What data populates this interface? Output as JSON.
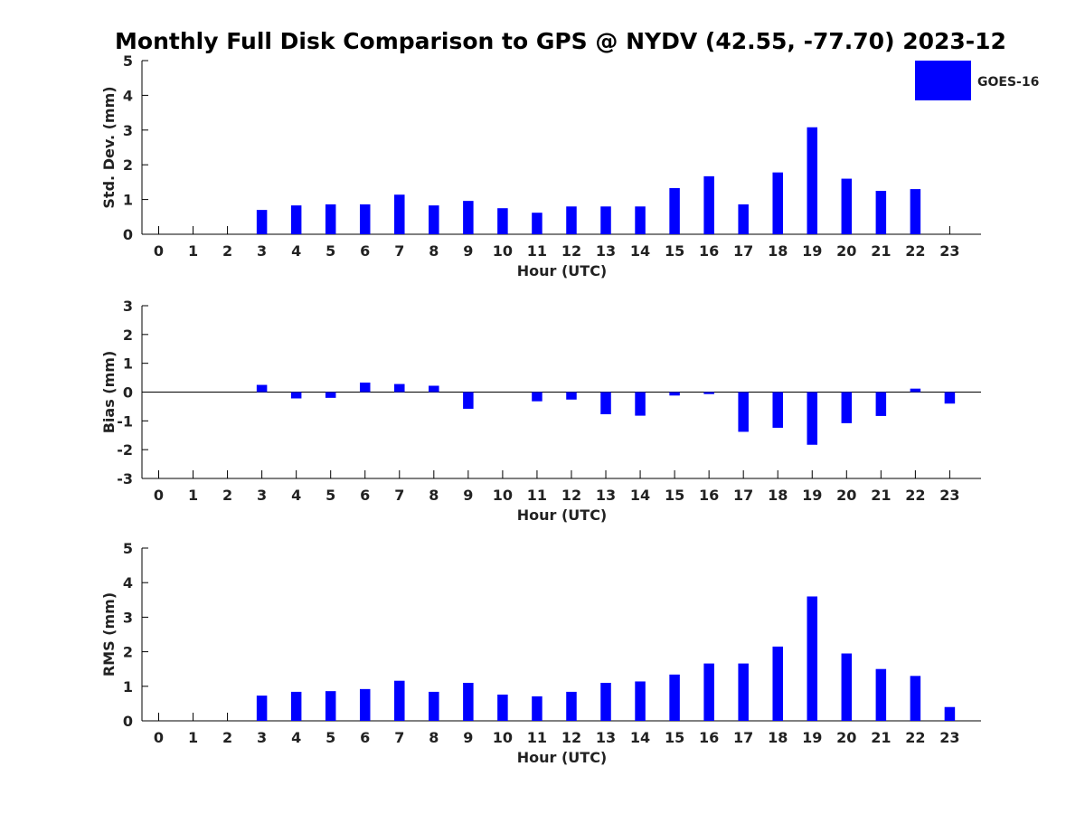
{
  "chart_data": {
    "title": "Monthly Full Disk Comparison to GPS @ NYDV (42.55, -77.70) 2023-12",
    "legend": {
      "label": "GOES-16",
      "color": "#0000ff",
      "placement": "top-right"
    },
    "bar_color": "#0000ff",
    "panels": [
      {
        "type": "bar",
        "name": "std-dev",
        "ylabel": "Std. Dev. (mm)",
        "xlabel": "Hour (UTC)",
        "ylim": [
          0,
          5
        ],
        "yticks": [
          "0",
          "1",
          "2",
          "3",
          "4",
          "5"
        ],
        "categories": [
          "0",
          "1",
          "2",
          "3",
          "4",
          "5",
          "6",
          "7",
          "8",
          "9",
          "10",
          "11",
          "12",
          "13",
          "14",
          "15",
          "16",
          "17",
          "18",
          "19",
          "20",
          "21",
          "22",
          "23"
        ],
        "series": [
          {
            "name": "GOES-16",
            "values": [
              null,
              null,
              null,
              0.7,
              0.83,
              0.86,
              0.86,
              1.14,
              0.83,
              0.96,
              0.75,
              0.62,
              0.8,
              0.8,
              0.8,
              1.33,
              1.67,
              0.86,
              1.78,
              3.08,
              1.6,
              1.25,
              1.3,
              null
            ]
          }
        ]
      },
      {
        "type": "bar",
        "name": "bias",
        "ylabel": "Bias (mm)",
        "xlabel": "Hour (UTC)",
        "ylim": [
          -3,
          3
        ],
        "yticks": [
          "-3",
          "-2",
          "-1",
          "0",
          "1",
          "2",
          "3"
        ],
        "categories": [
          "0",
          "1",
          "2",
          "3",
          "4",
          "5",
          "6",
          "7",
          "8",
          "9",
          "10",
          "11",
          "12",
          "13",
          "14",
          "15",
          "16",
          "17",
          "18",
          "19",
          "20",
          "21",
          "22",
          "23"
        ],
        "series": [
          {
            "name": "GOES-16",
            "values": [
              null,
              null,
              null,
              0.25,
              -0.22,
              -0.2,
              0.33,
              0.28,
              0.22,
              -0.58,
              null,
              -0.32,
              -0.26,
              -0.77,
              -0.82,
              -0.12,
              -0.07,
              -1.38,
              -1.24,
              -1.83,
              -1.08,
              -0.83,
              0.12,
              -0.4
            ]
          }
        ],
        "zero_line": true
      },
      {
        "type": "bar",
        "name": "rms",
        "ylabel": "RMS (mm)",
        "xlabel": "Hour (UTC)",
        "ylim": [
          0,
          5
        ],
        "yticks": [
          "0",
          "1",
          "2",
          "3",
          "4",
          "5"
        ],
        "categories": [
          "0",
          "1",
          "2",
          "3",
          "4",
          "5",
          "6",
          "7",
          "8",
          "9",
          "10",
          "11",
          "12",
          "13",
          "14",
          "15",
          "16",
          "17",
          "18",
          "19",
          "20",
          "21",
          "22",
          "23"
        ],
        "series": [
          {
            "name": "GOES-16",
            "values": [
              null,
              null,
              null,
              0.73,
              0.84,
              0.86,
              0.92,
              1.16,
              0.84,
              1.1,
              0.76,
              0.71,
              0.84,
              1.1,
              1.14,
              1.34,
              1.66,
              1.66,
              2.15,
              3.6,
              1.95,
              1.5,
              1.3,
              0.4
            ]
          }
        ]
      }
    ]
  }
}
